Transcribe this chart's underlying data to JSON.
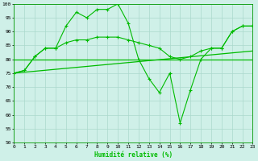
{
  "xlabel": "Humidité relative (%)",
  "xlim": [
    0,
    23
  ],
  "ylim": [
    50,
    100
  ],
  "yticks": [
    50,
    55,
    60,
    65,
    70,
    75,
    80,
    85,
    90,
    95,
    100
  ],
  "xticks": [
    0,
    1,
    2,
    3,
    4,
    5,
    6,
    7,
    8,
    9,
    10,
    11,
    12,
    13,
    14,
    15,
    16,
    17,
    18,
    19,
    20,
    21,
    22,
    23
  ],
  "bg_color": "#cff0e8",
  "grid_color": "#aad8cc",
  "line_color": "#00bb00",
  "line1_x": [
    0,
    1,
    2,
    3,
    4,
    5,
    6,
    7,
    8,
    9,
    10,
    11,
    12,
    13,
    14,
    15,
    16,
    17,
    18,
    19,
    20,
    21,
    22,
    23
  ],
  "line1_y": [
    75,
    76,
    81,
    84,
    84,
    92,
    97,
    95,
    98,
    98,
    100,
    93,
    80,
    73,
    68,
    75,
    57,
    69,
    80,
    84,
    84,
    90,
    92,
    92
  ],
  "line2_x": [
    0,
    1,
    2,
    3,
    4,
    5,
    6,
    7,
    8,
    9,
    10,
    11,
    12,
    13,
    14,
    15,
    16,
    17,
    18,
    19,
    20,
    21,
    22,
    23
  ],
  "line2_y": [
    75,
    76,
    81,
    84,
    84,
    86,
    87,
    87,
    88,
    88,
    88,
    87,
    86,
    85,
    84,
    81,
    80,
    81,
    83,
    84,
    84,
    90,
    92,
    92
  ],
  "line3_x": [
    0,
    23
  ],
  "line3_y": [
    80,
    80
  ],
  "line4_x": [
    0,
    23
  ],
  "line4_y": [
    75,
    83
  ]
}
